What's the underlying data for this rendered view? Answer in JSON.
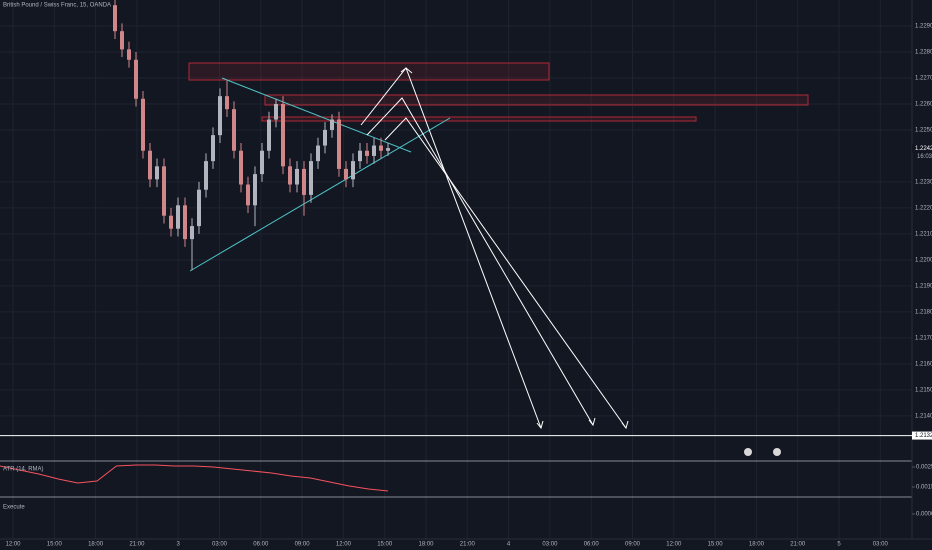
{
  "chart_data": {
    "type": "candlestick",
    "title": "British Pound / Swiss Franc, 15, OANDA",
    "up_color": "#b2b5be",
    "down_color": "#d1868a",
    "open": [
      1.2298,
      1.2288,
      1.2281,
      1.2277,
      1.2262,
      1.2242,
      1.2231,
      1.2236,
      1.2217,
      1.2212,
      1.2221,
      1.2208,
      1.2213,
      1.2227,
      1.2238,
      1.2248,
      1.2263,
      1.2258,
      1.2242,
      1.2229,
      1.2221,
      1.2233,
      1.2242,
      1.2254,
      1.226,
      1.2236,
      1.2229,
      1.2235,
      1.2225,
      1.2238,
      1.2244,
      1.225,
      1.2254,
      1.2235,
      1.2231,
      1.2238,
      1.2242,
      1.224,
      1.2244,
      1.2242
    ],
    "high": [
      1.23,
      1.2291,
      1.2284,
      1.228,
      1.2265,
      1.2245,
      1.2239,
      1.2239,
      1.222,
      1.2224,
      1.2224,
      1.2216,
      1.223,
      1.2241,
      1.2251,
      1.2266,
      1.2269,
      1.2261,
      1.2245,
      1.2232,
      1.2236,
      1.2245,
      1.2257,
      1.2262,
      1.2263,
      1.2239,
      1.2238,
      1.2238,
      1.2241,
      1.2247,
      1.2253,
      1.2256,
      1.2257,
      1.2238,
      1.2241,
      1.2245,
      1.2245,
      1.2247,
      1.2247,
      1.2245
    ],
    "low": [
      1.2285,
      1.2278,
      1.2274,
      1.2259,
      1.2239,
      1.2228,
      1.2228,
      1.2214,
      1.2209,
      1.2209,
      1.2205,
      1.2196,
      1.221,
      1.2224,
      1.2235,
      1.2245,
      1.2255,
      1.2239,
      1.2226,
      1.2218,
      1.2213,
      1.223,
      1.2239,
      1.2251,
      1.2233,
      1.2226,
      1.2226,
      1.2217,
      1.2222,
      1.2235,
      1.2241,
      1.2247,
      1.2232,
      1.2228,
      1.2228,
      1.2235,
      1.2237,
      1.2237,
      1.2239,
      1.224
    ],
    "close": [
      1.2288,
      1.2281,
      1.2277,
      1.2262,
      1.2242,
      1.2231,
      1.2236,
      1.2217,
      1.2212,
      1.2221,
      1.2208,
      1.2213,
      1.2227,
      1.2238,
      1.2248,
      1.2263,
      1.2258,
      1.2242,
      1.2229,
      1.2221,
      1.2233,
      1.2242,
      1.2254,
      1.226,
      1.2236,
      1.2229,
      1.2235,
      1.2225,
      1.2238,
      1.2244,
      1.225,
      1.2254,
      1.2235,
      1.2231,
      1.2238,
      1.2242,
      1.224,
      1.2244,
      1.2242,
      1.2243
    ],
    "ylim": [
      1.2123,
      1.23
    ],
    "yticks": [
      {
        "value": 1.229,
        "label": "1.22900"
      },
      {
        "value": 1.228,
        "label": "1.22800"
      },
      {
        "value": 1.227,
        "label": "1.22700"
      },
      {
        "value": 1.226,
        "label": "1.22600"
      },
      {
        "value": 1.225,
        "label": "1.22500"
      },
      {
        "value": 1.223,
        "label": "1.22300"
      },
      {
        "value": 1.222,
        "label": "1.22200"
      },
      {
        "value": 1.221,
        "label": "1.22100"
      },
      {
        "value": 1.22,
        "label": "1.22000"
      },
      {
        "value": 1.219,
        "label": "1.21900"
      },
      {
        "value": 1.218,
        "label": "1.21800"
      },
      {
        "value": 1.217,
        "label": "1.21700"
      },
      {
        "value": 1.216,
        "label": "1.21600"
      },
      {
        "value": 1.215,
        "label": "1.21500"
      },
      {
        "value": 1.214,
        "label": "1.21400"
      }
    ],
    "price_labels": [
      {
        "value": 1.22429,
        "label": "1.22429"
      },
      {
        "value": 1.21324,
        "label": "1.21324"
      }
    ],
    "countdown": "16:03",
    "time_labels": [
      "12:00",
      "15:00",
      "18:00",
      "21:00",
      "3",
      "03:00",
      "06:00",
      "09:00",
      "12:00",
      "15:00",
      "18:00",
      "21:00",
      "4",
      "03:00",
      "06:00",
      "09:00",
      "12:00",
      "15:00",
      "18:00",
      "21:00",
      "5",
      "03:00"
    ],
    "atr": {
      "name": "ATR (14, RMA)",
      "color": "#f7525f",
      "values": [
        0.00255,
        0.00235,
        0.00215,
        0.0019,
        0.0017,
        0.0018,
        0.00255,
        0.0026,
        0.0026,
        0.00255,
        0.00255,
        0.0025,
        0.0024,
        0.0023,
        0.0022,
        0.00205,
        0.00195,
        0.00175,
        0.00155,
        0.0014,
        0.0013
      ],
      "ylim": [
        0.001,
        0.00275
      ],
      "yticks": [
        {
          "value": 0.0025,
          "label": "0.00250"
        },
        {
          "value": 0.0015,
          "label": "0.00150"
        }
      ]
    },
    "execute": {
      "name": "Execute",
      "yticks": [
        {
          "value": 0,
          "label": "0.00000"
        }
      ]
    }
  }
}
